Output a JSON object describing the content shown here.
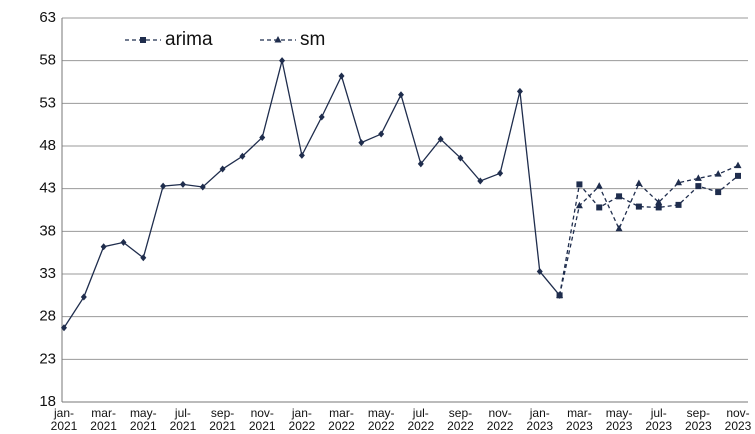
{
  "chart_data": {
    "type": "line",
    "categories": [
      "jan-2021",
      null,
      "mar-2021",
      null,
      "may-2021",
      null,
      "jul-2021",
      null,
      "sep-2021",
      null,
      "nov-2021",
      null,
      "jan-2022",
      null,
      "mar-2022",
      null,
      "may-2022",
      null,
      "jul-2022",
      null,
      "sep-2022",
      null,
      "nov-2022",
      null,
      "jan-2023",
      null,
      "mar-2023",
      null,
      "may-2023",
      null,
      "jul-2023",
      null,
      "sep-2023",
      null,
      "nov-2023"
    ],
    "series": [
      {
        "color": "#1f2d4d",
        "marker": "diamond",
        "dashed": false,
        "values": [
          26.7,
          30.3,
          36.2,
          36.7,
          34.9,
          43.3,
          43.5,
          43.2,
          45.3,
          46.8,
          49.0,
          58.0,
          46.9,
          51.4,
          56.2,
          48.4,
          49.4,
          54.0,
          45.9,
          48.8,
          46.6,
          43.9,
          44.8,
          54.4,
          33.3,
          30.5,
          null,
          null,
          null,
          null,
          null,
          null,
          null,
          null,
          null
        ]
      },
      {
        "name": "arima",
        "color": "#1f2d4d",
        "marker": "square",
        "dashed": true,
        "values": [
          null,
          null,
          null,
          null,
          null,
          null,
          null,
          null,
          null,
          null,
          null,
          null,
          null,
          null,
          null,
          null,
          null,
          null,
          null,
          null,
          null,
          null,
          null,
          null,
          null,
          30.5,
          43.5,
          40.8,
          42.1,
          40.9,
          40.8,
          41.1,
          43.3,
          42.6,
          44.5
        ]
      },
      {
        "name": "sm",
        "color": "#1f2d4d",
        "marker": "triangle",
        "dashed": true,
        "values": [
          null,
          null,
          null,
          null,
          null,
          null,
          null,
          null,
          null,
          null,
          null,
          null,
          null,
          null,
          null,
          null,
          null,
          null,
          null,
          null,
          null,
          null,
          null,
          null,
          null,
          30.5,
          41.0,
          43.3,
          38.3,
          43.6,
          41.4,
          43.7,
          44.2,
          44.7,
          45.7
        ]
      }
    ],
    "ylim": [
      18,
      63
    ],
    "yticks": [
      18,
      23,
      28,
      33,
      38,
      43,
      48,
      53,
      58,
      63
    ],
    "grid": true
  }
}
